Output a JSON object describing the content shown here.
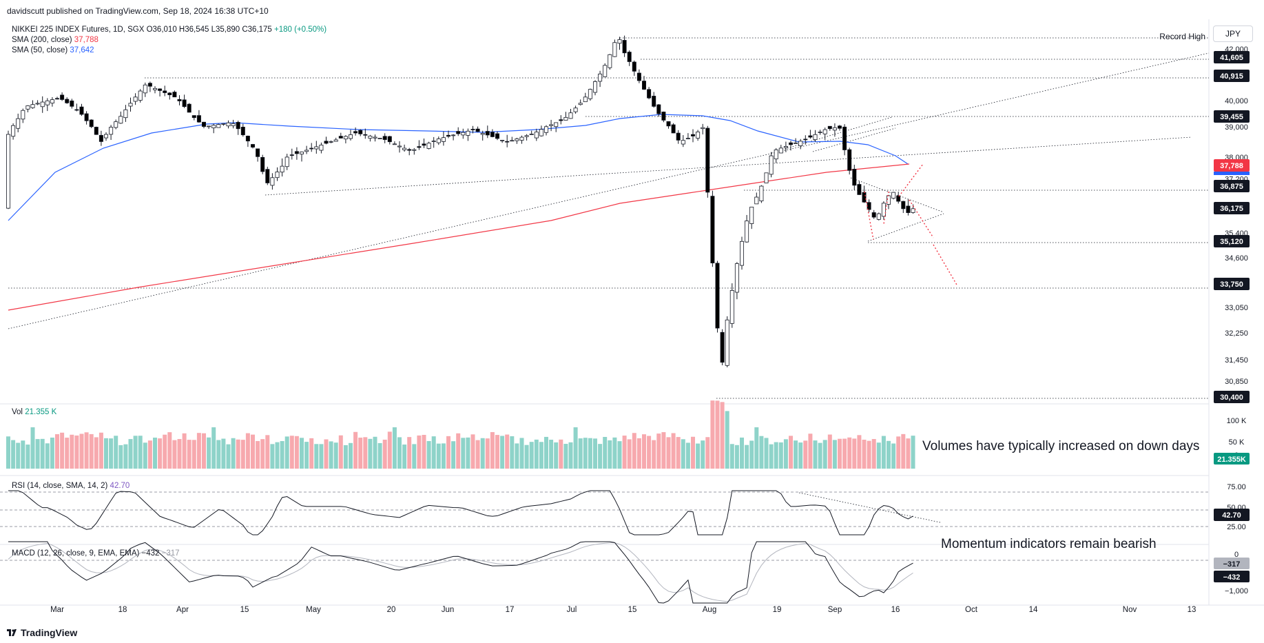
{
  "publisher_line": "davidscutt published on TradingView.com, Sep 18, 2024 16:38 UTC+10",
  "footer_brand": "TradingView",
  "currency": "JPY",
  "legend": {
    "symbol": "NIKKEI 225 INDEX Futures, 1D, SGX",
    "ohlc": "O36,010 H36,545 L35,890 C36,175",
    "change": "+180 (+0.50%)",
    "sma200_label": "SMA (200, close)",
    "sma200_value": "37,788",
    "sma50_label": "SMA (50, close)",
    "sma50_value": "37,642"
  },
  "vol_legend": {
    "label": "Vol",
    "value": "21.355 K"
  },
  "rsi_legend": {
    "label": "RSI (14, close, SMA, 14, 2)",
    "value": "42.70"
  },
  "macd_legend": {
    "label": "MACD (12, 26, close, 9, EMA, EMA)",
    "value1": "−432",
    "value2": "−317"
  },
  "annotations": {
    "volume_note": "Volumes have typically increased on down days",
    "momentum_note": "Momentum indicators remain bearish",
    "record_high": "Record High"
  },
  "colors": {
    "up": "#089981",
    "down": "#f23645",
    "sma50": "#2962ff",
    "sma200": "#f23645",
    "candle_up_fill": "#ffffff",
    "candle_down_fill": "#000000"
  },
  "chart_data": {
    "type": "candlestick",
    "title": "NIKKEI 225 INDEX Futures, 1D, SGX",
    "x_tick_labels": [
      "Mar",
      "18",
      "Apr",
      "15",
      "May",
      "20",
      "Jun",
      "17",
      "Jul",
      "15",
      "Aug",
      "19",
      "Sep",
      "16",
      "Oct",
      "14",
      "Nov",
      "13"
    ],
    "y_tick_labels": [
      "42,000",
      "40,000",
      "39,000",
      "38,000",
      "37,200",
      "35,400",
      "34,600",
      "33,850",
      "33,050",
      "32,250",
      "31,450",
      "30,850"
    ],
    "price_levels": [
      {
        "label": "41,605",
        "value": 41605
      },
      {
        "label": "40,915",
        "value": 40915
      },
      {
        "label": "39,455",
        "value": 39455
      },
      {
        "label": "37,788",
        "value": 37788,
        "kind": "sma200"
      },
      {
        "label": "36,875",
        "value": 36875
      },
      {
        "label": "36,175",
        "value": 36175,
        "kind": "last"
      },
      {
        "label": "35,120",
        "value": 35120
      },
      {
        "label": "33,750",
        "value": 33750
      },
      {
        "label": "30,400",
        "value": 30400
      }
    ],
    "last_close": 36175,
    "record_high": 42400,
    "sma200_last": 37788,
    "sma50_last": 37642,
    "volume_axis_labels": [
      "100 K",
      "50 K",
      "0"
    ],
    "volume_last": "21.355K",
    "rsi_axis_labels": [
      "75.00",
      "50.00",
      "25.00"
    ],
    "rsi_last": 42.7,
    "macd_axis_labels": [
      "0",
      "−1,000"
    ],
    "macd_last": -432,
    "macd_signal_last": -317
  }
}
